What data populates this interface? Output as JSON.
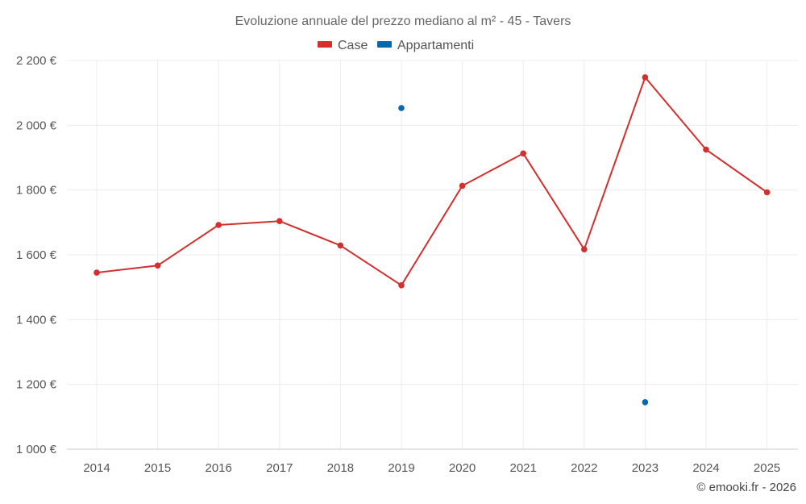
{
  "chart_data": {
    "type": "line",
    "title": "Evoluzione annuale del prezzo mediano al m² - 45 - Tavers",
    "xlabel": "",
    "ylabel": "",
    "categories": [
      "2014",
      "2015",
      "2016",
      "2017",
      "2018",
      "2019",
      "2020",
      "2021",
      "2022",
      "2023",
      "2024",
      "2025"
    ],
    "ylim": [
      1000,
      2200
    ],
    "yticks": [
      1000,
      1200,
      1400,
      1600,
      1800,
      2000,
      2200
    ],
    "ytick_labels": [
      "1 000 €",
      "1 200 €",
      "1 400 €",
      "1 600 €",
      "1 800 €",
      "2 000 €",
      "2 200 €"
    ],
    "grid": true,
    "legend_position": "top-center",
    "series": [
      {
        "name": "Case",
        "color": "#d32f2f",
        "mode": "lines+markers",
        "values": [
          1545,
          1567,
          1692,
          1704,
          1629,
          1506,
          1813,
          1913,
          1617,
          2148,
          1925,
          1793
        ]
      },
      {
        "name": "Appartamenti",
        "color": "#0868a8",
        "mode": "markers",
        "values": [
          null,
          null,
          null,
          null,
          null,
          2053,
          null,
          null,
          null,
          1145,
          null,
          null
        ]
      }
    ]
  },
  "credit": "© emooki.fr - 2026"
}
